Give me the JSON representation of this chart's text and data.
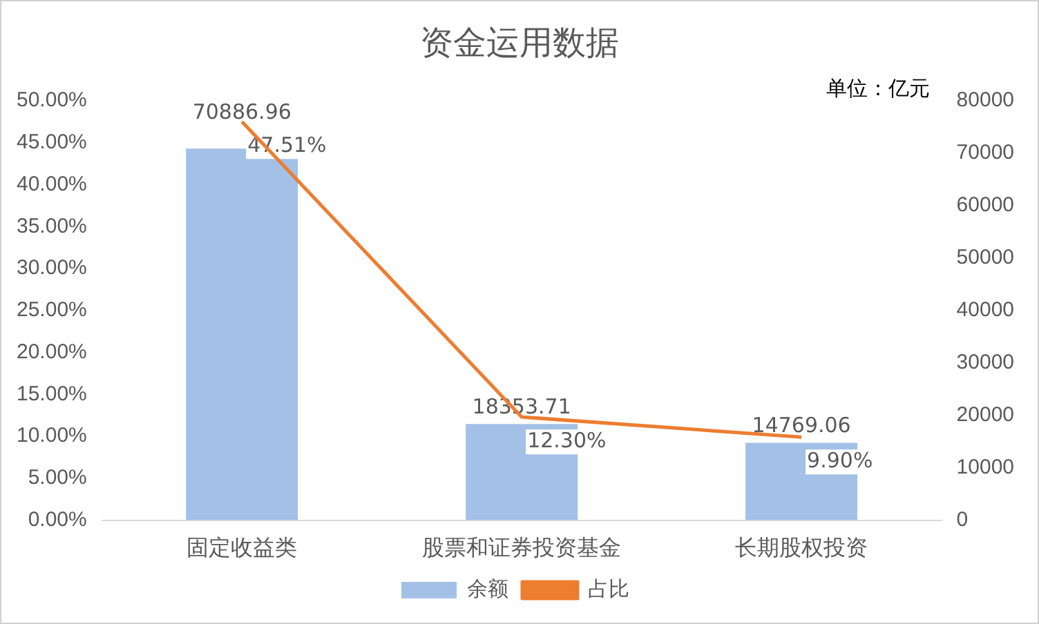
{
  "chart_data": {
    "type": "bar",
    "title": "资金运用数据",
    "annotations": [
      "单位：亿元"
    ],
    "categories": [
      "固定收益类",
      "股票和证券投资基金",
      "长期股权投资"
    ],
    "series": [
      {
        "name": "余额",
        "type": "bar",
        "axis": "y2",
        "color": "#a3c1e6",
        "values": [
          70886.96,
          18353.71,
          14769.06
        ],
        "value_labels": [
          "70886.96",
          "18353.71",
          "14769.06"
        ]
      },
      {
        "name": "占比",
        "type": "line",
        "axis": "y",
        "color": "#ed7d31",
        "values": [
          47.51,
          12.3,
          9.9
        ],
        "value_labels": [
          "47.51%",
          "12.30%",
          "9.90%"
        ]
      }
    ],
    "ylim": [
      0,
      50
    ],
    "yticks": [
      {
        "value": 0,
        "label": "0.00%"
      },
      {
        "value": 5,
        "label": "5.00%"
      },
      {
        "value": 10,
        "label": "10.00%"
      },
      {
        "value": 15,
        "label": "15.00%"
      },
      {
        "value": 20,
        "label": "20.00%"
      },
      {
        "value": 25,
        "label": "25.00%"
      },
      {
        "value": 30,
        "label": "30.00%"
      },
      {
        "value": 35,
        "label": "35.00%"
      },
      {
        "value": 40,
        "label": "40.00%"
      },
      {
        "value": 45,
        "label": "45.00%"
      },
      {
        "value": 50,
        "label": "50.00%"
      }
    ],
    "y2lim": [
      0,
      80000
    ],
    "y2ticks": [
      0,
      10000,
      20000,
      30000,
      40000,
      50000,
      60000,
      70000,
      80000
    ],
    "grid": false,
    "legend": "bottom",
    "marker": "none",
    "line_style": "solid"
  }
}
